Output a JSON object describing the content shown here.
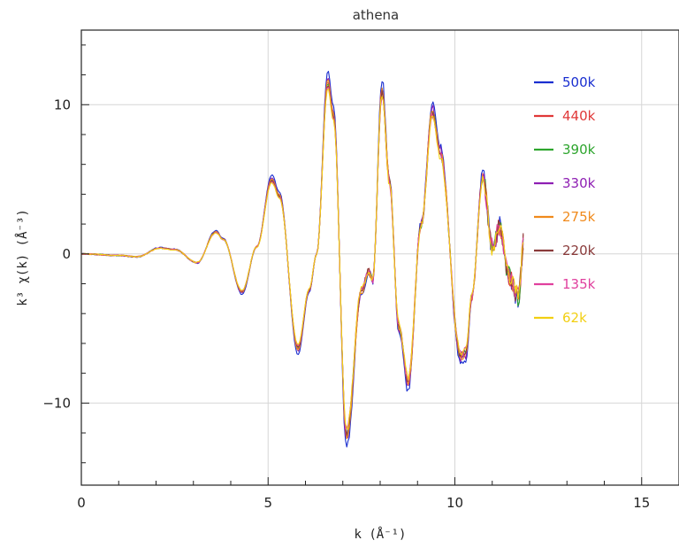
{
  "chart_data": {
    "type": "line",
    "title": "athena",
    "xlabel": "k (Å⁻¹)",
    "ylabel": "k³ χ(k) (Å⁻³)",
    "xlim": [
      0,
      16
    ],
    "ylim": [
      -15.5,
      15
    ],
    "xticks": [
      0,
      5,
      10,
      15
    ],
    "yticks": [
      -10,
      0,
      10
    ],
    "grid": true,
    "legend_position": "top-right",
    "base_curve": [
      [
        0,
        0
      ],
      [
        1,
        -0.1
      ],
      [
        1.5,
        -0.2
      ],
      [
        2.1,
        0.4
      ],
      [
        2.5,
        0.3
      ],
      [
        3.1,
        -0.6
      ],
      [
        3.6,
        1.5
      ],
      [
        3.8,
        1.0
      ],
      [
        4.3,
        -2.6
      ],
      [
        4.7,
        0.5
      ],
      [
        5.1,
        5.1
      ],
      [
        5.3,
        4.0
      ],
      [
        5.8,
        -6.5
      ],
      [
        6.1,
        -2.5
      ],
      [
        6.3,
        0
      ],
      [
        6.6,
        11.8
      ],
      [
        6.75,
        9.5
      ],
      [
        7.1,
        -12.5
      ],
      [
        7.5,
        -2.5
      ],
      [
        7.7,
        -1.2
      ],
      [
        7.8,
        -1.8
      ],
      [
        8.05,
        11.3
      ],
      [
        8.25,
        5.0
      ],
      [
        8.5,
        -5.0
      ],
      [
        8.75,
        -8.8
      ],
      [
        9.1,
        2.0
      ],
      [
        9.4,
        9.8
      ],
      [
        9.6,
        7.0
      ],
      [
        10.15,
        -7.0
      ],
      [
        10.3,
        -6.8
      ],
      [
        10.45,
        -3.0
      ],
      [
        10.75,
        5.3
      ],
      [
        11.0,
        0.5
      ],
      [
        11.2,
        1.8
      ],
      [
        11.45,
        -1.5
      ],
      [
        11.7,
        -3.0
      ],
      [
        11.85,
        1.0
      ]
    ],
    "series": [
      {
        "name": "500k",
        "color": "#1a2fd0",
        "amp": 1.04,
        "seed": 3
      },
      {
        "name": "440k",
        "color": "#e03838",
        "amp": 0.98,
        "seed": 11
      },
      {
        "name": "390k",
        "color": "#2ea52e",
        "amp": 0.97,
        "seed": 19
      },
      {
        "name": "330k",
        "color": "#8e1fb3",
        "amp": 1.0,
        "seed": 27
      },
      {
        "name": "275k",
        "color": "#f08a1c",
        "amp": 0.99,
        "seed": 35
      },
      {
        "name": "220k",
        "color": "#8a3b3b",
        "amp": 0.96,
        "seed": 43
      },
      {
        "name": "135k",
        "color": "#e0409e",
        "amp": 0.95,
        "seed": 51
      },
      {
        "name": "62k",
        "color": "#f2cf12",
        "amp": 0.94,
        "seed": 59
      }
    ]
  }
}
